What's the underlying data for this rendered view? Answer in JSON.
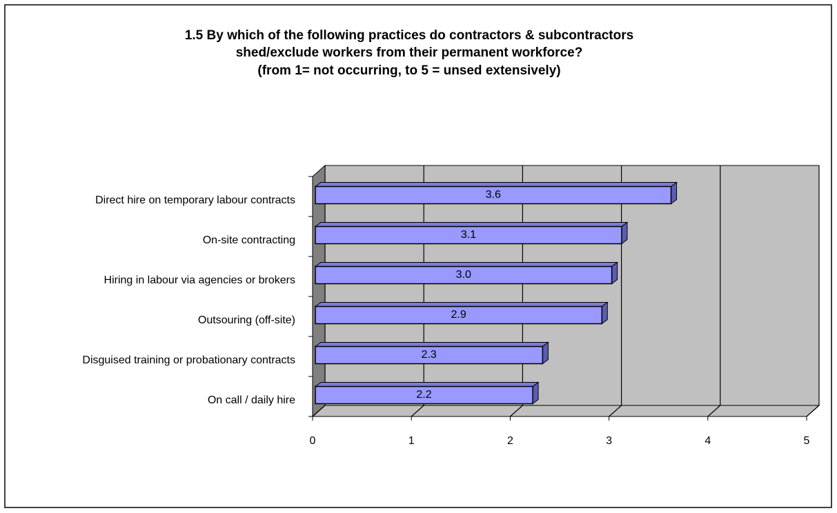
{
  "chart_data": {
    "type": "bar3d_horizontal",
    "title": [
      "1.5 By which of the following  practices do contractors & subcontractors",
      "shed/exclude workers from their permanent workforce?",
      "(from 1= not occurring, to 5 = unsed extensively)"
    ],
    "categories": [
      "Direct hire on temporary labour contracts",
      "On-site contracting",
      "Hiring in labour via agencies or brokers",
      "Outsouring (off-site)",
      "Disguised training or probationary contracts",
      "On call / daily hire"
    ],
    "values": [
      3.6,
      3.1,
      3.0,
      2.9,
      2.3,
      2.2
    ],
    "value_labels": [
      "3.6",
      "3.1",
      "3.0",
      "2.9",
      "2.3",
      "2.2"
    ],
    "color": "#9999ff",
    "xlim": [
      0,
      5
    ],
    "xticks": [
      0,
      1,
      2,
      3,
      4,
      5
    ],
    "grid": true
  }
}
